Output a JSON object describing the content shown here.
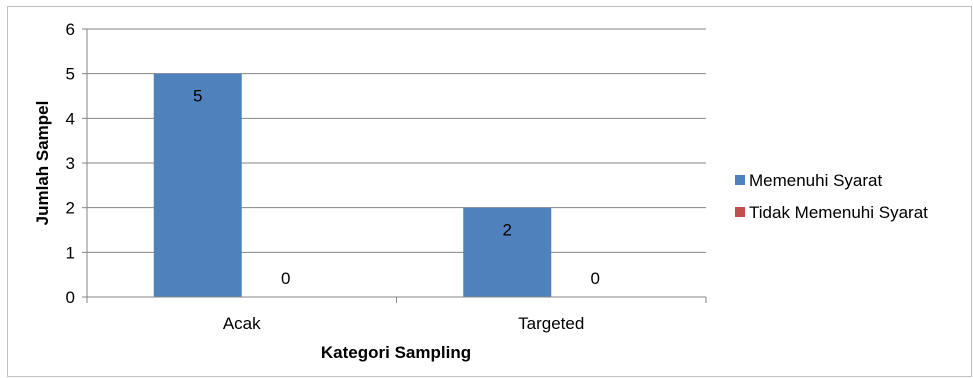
{
  "chart_data": {
    "type": "bar",
    "categories": [
      "Acak",
      "Targeted"
    ],
    "series": [
      {
        "name": "Memenuhi Syarat",
        "values": [
          5,
          2
        ],
        "color": "#4f81bd"
      },
      {
        "name": "Tidak Memenuhi Syarat",
        "values": [
          0,
          0
        ],
        "color": "#c0504d"
      }
    ],
    "xlabel": "Kategori Sampling",
    "ylabel": "Jumlah Sampel",
    "ylim": [
      0,
      6
    ],
    "yticks": [
      0,
      1,
      2,
      3,
      4,
      5,
      6
    ],
    "grid": true,
    "legend": "right"
  }
}
